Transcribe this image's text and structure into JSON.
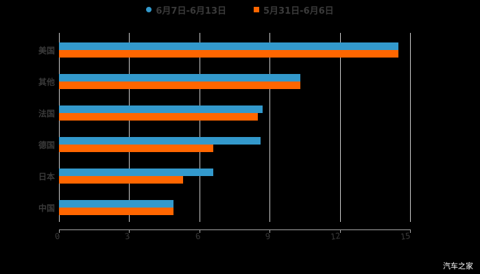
{
  "legend": [
    {
      "label": "6月7日-6月13日",
      "color": "#3399cc",
      "shape": "circle"
    },
    {
      "label": "5月31日-6月6日",
      "color": "#ff6600",
      "shape": "square"
    }
  ],
  "watermark": "汽车之家",
  "axis": {
    "ticks": [
      "0",
      "3",
      "6",
      "9",
      "12",
      "15"
    ]
  },
  "chart_data": {
    "type": "bar",
    "orientation": "horizontal",
    "title": "",
    "xlabel": "",
    "ylabel": "",
    "xlim": [
      0,
      15
    ],
    "grid": true,
    "legend_position": "top",
    "categories": [
      "美国",
      "其他",
      "法国",
      "德国",
      "日本",
      "中国"
    ],
    "series": [
      {
        "name": "6月7日-6月13日",
        "color": "#3399cc",
        "values": [
          14.5,
          10.3,
          8.7,
          8.6,
          6.6,
          4.9
        ]
      },
      {
        "name": "5月31日-6月6日",
        "color": "#ff6600",
        "values": [
          14.5,
          10.3,
          8.5,
          6.6,
          5.3,
          4.9
        ]
      }
    ]
  }
}
